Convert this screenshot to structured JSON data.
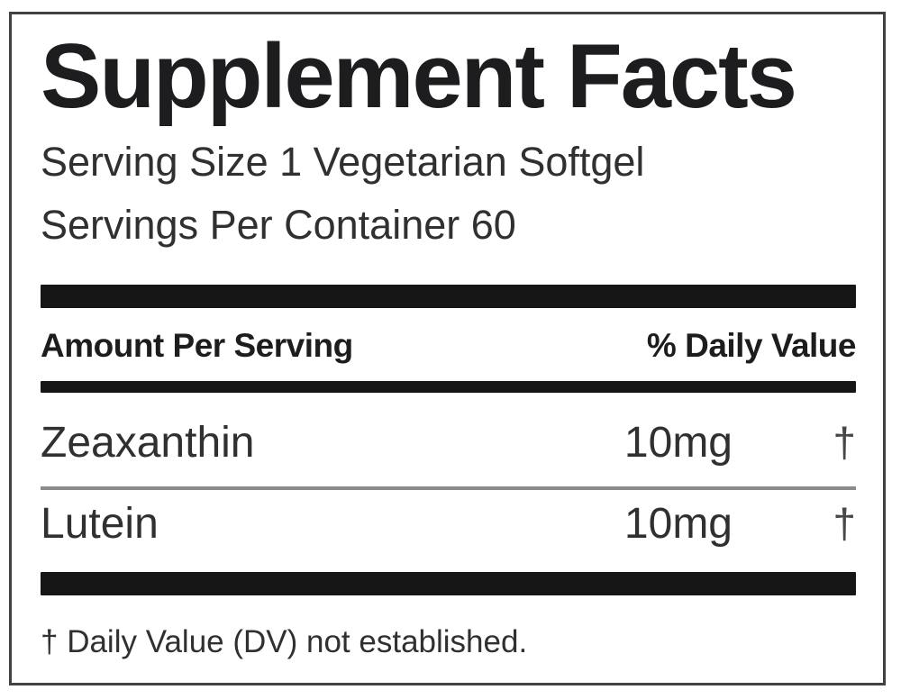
{
  "label": {
    "title": "Supplement Facts",
    "serving_size": "Serving Size 1 Vegetarian Softgel",
    "servings_per_container": "Servings Per Container 60",
    "columns": {
      "amount": "Amount Per Serving",
      "daily_value": "% Daily Value"
    },
    "rows": [
      {
        "name": "Zeaxanthin",
        "amount": "10mg",
        "daily_value": "†"
      },
      {
        "name": "Lutein",
        "amount": "10mg",
        "daily_value": "†"
      }
    ],
    "footnote": "† Daily Value (DV) not established.",
    "colors": {
      "text": "#1d1d1f",
      "body_text": "#303030",
      "bar": "#161616",
      "divider": "#8b8b8b",
      "border": "#414141",
      "background": "#ffffff"
    }
  }
}
